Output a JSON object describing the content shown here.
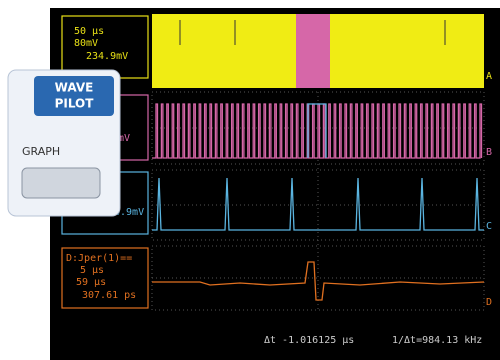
{
  "channels": [
    {
      "label": "A",
      "settings": [
        "50 μs",
        "80mV",
        "234.9mV"
      ]
    },
    {
      "label": "B",
      "settings": [
        "mV"
      ]
    },
    {
      "label": "C",
      "settings": [
        "4.9mV"
      ]
    },
    {
      "label": "D",
      "settings": [
        "D:Jper(1)==",
        "5 μs",
        "59 μs",
        "307.61 ps"
      ]
    }
  ],
  "overlay": {
    "logo_top": "WAVE",
    "logo_bottom": "PILOT",
    "button": "GRAPH"
  },
  "readout": {
    "delta_t": "Δt  -1.016125 μs",
    "frequency": "1/Δt=984.13 kHz"
  }
}
